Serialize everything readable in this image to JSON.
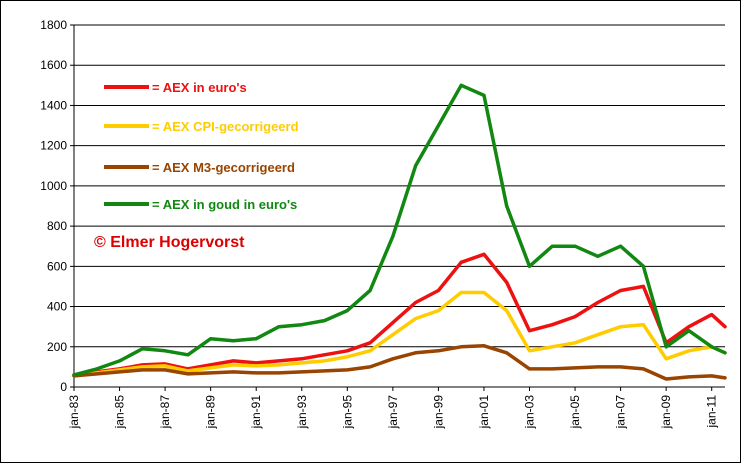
{
  "chart_data": {
    "type": "line",
    "title": "",
    "xlabel": "",
    "ylabel": "",
    "ylim": [
      0,
      1800
    ],
    "xlim": [
      "jan-83",
      "aug-11"
    ],
    "y_ticks": [
      0,
      200,
      400,
      600,
      800,
      1000,
      1200,
      1400,
      1600,
      1800
    ],
    "x_ticks": [
      "jan-83",
      "jan-85",
      "jan-87",
      "jan-89",
      "jan-91",
      "jan-93",
      "jan-95",
      "jan-97",
      "jan-99",
      "jan-01",
      "jan-03",
      "jan-05",
      "jan-07",
      "jan-09",
      "jan-11"
    ],
    "grid": "horizontal",
    "legend_position": "upper-left",
    "copyright": "© Elmer Hogervorst",
    "series": [
      {
        "name": "= AEX in euro's",
        "color": "#ee1111",
        "x": [
          "jan-83",
          "jan-84",
          "jan-85",
          "jan-86",
          "jan-87",
          "jan-88",
          "jan-89",
          "jan-90",
          "jan-91",
          "jan-92",
          "jan-93",
          "jan-94",
          "jan-95",
          "jan-96",
          "jan-97",
          "jan-98",
          "jan-99",
          "jan-00",
          "jan-01",
          "jan-02",
          "jan-03",
          "jan-04",
          "jan-05",
          "jan-06",
          "jan-07",
          "jan-08",
          "jan-09",
          "jan-10",
          "jan-11",
          "aug-11"
        ],
        "values": [
          60,
          75,
          90,
          110,
          115,
          90,
          110,
          130,
          120,
          130,
          140,
          160,
          180,
          220,
          320,
          420,
          480,
          620,
          660,
          520,
          280,
          310,
          350,
          420,
          480,
          500,
          220,
          300,
          360,
          300
        ]
      },
      {
        "name": "= AEX CPI-gecorrigeerd",
        "color": "#ffcc00",
        "x": [
          "jan-83",
          "jan-84",
          "jan-85",
          "jan-86",
          "jan-87",
          "jan-88",
          "jan-89",
          "jan-90",
          "jan-91",
          "jan-92",
          "jan-93",
          "jan-94",
          "jan-95",
          "jan-96",
          "jan-97",
          "jan-98",
          "jan-99",
          "jan-00",
          "jan-01",
          "jan-02",
          "jan-03",
          "jan-04",
          "jan-05",
          "jan-06",
          "jan-07",
          "jan-08",
          "jan-09",
          "jan-10",
          "jan-11",
          "aug-11"
        ],
        "values": [
          55,
          70,
          85,
          100,
          105,
          80,
          95,
          110,
          105,
          110,
          120,
          130,
          150,
          180,
          260,
          340,
          380,
          470,
          470,
          380,
          180,
          200,
          220,
          260,
          300,
          310,
          140,
          180,
          200,
          170
        ]
      },
      {
        "name": "= AEX M3-gecorrigeerd",
        "color": "#994400",
        "x": [
          "jan-83",
          "jan-84",
          "jan-85",
          "jan-86",
          "jan-87",
          "jan-88",
          "jan-89",
          "jan-90",
          "jan-91",
          "jan-92",
          "jan-93",
          "jan-94",
          "jan-95",
          "jan-96",
          "jan-97",
          "jan-98",
          "jan-99",
          "jan-00",
          "jan-01",
          "jan-02",
          "jan-03",
          "jan-04",
          "jan-05",
          "jan-06",
          "jan-07",
          "jan-08",
          "jan-09",
          "jan-10",
          "jan-11",
          "aug-11"
        ],
        "values": [
          55,
          65,
          75,
          85,
          85,
          65,
          70,
          75,
          70,
          70,
          75,
          80,
          85,
          100,
          140,
          170,
          180,
          200,
          205,
          170,
          90,
          90,
          95,
          100,
          100,
          90,
          40,
          50,
          55,
          45
        ]
      },
      {
        "name": "= AEX in goud in euro's",
        "color": "#118811",
        "x": [
          "jan-83",
          "jan-84",
          "jan-85",
          "jan-86",
          "jan-87",
          "jan-88",
          "jan-89",
          "jan-90",
          "jan-91",
          "jan-92",
          "jan-93",
          "jan-94",
          "jan-95",
          "jan-96",
          "jan-97",
          "jan-98",
          "jan-99",
          "jan-00",
          "jan-01",
          "jan-02",
          "jan-03",
          "jan-04",
          "jan-05",
          "jan-06",
          "jan-07",
          "jan-08",
          "jan-09",
          "jan-10",
          "jan-11",
          "aug-11"
        ],
        "values": [
          60,
          90,
          130,
          190,
          180,
          160,
          240,
          230,
          240,
          300,
          310,
          330,
          380,
          480,
          750,
          1100,
          1300,
          1500,
          1450,
          900,
          600,
          700,
          700,
          650,
          700,
          600,
          200,
          280,
          200,
          170
        ]
      }
    ]
  }
}
